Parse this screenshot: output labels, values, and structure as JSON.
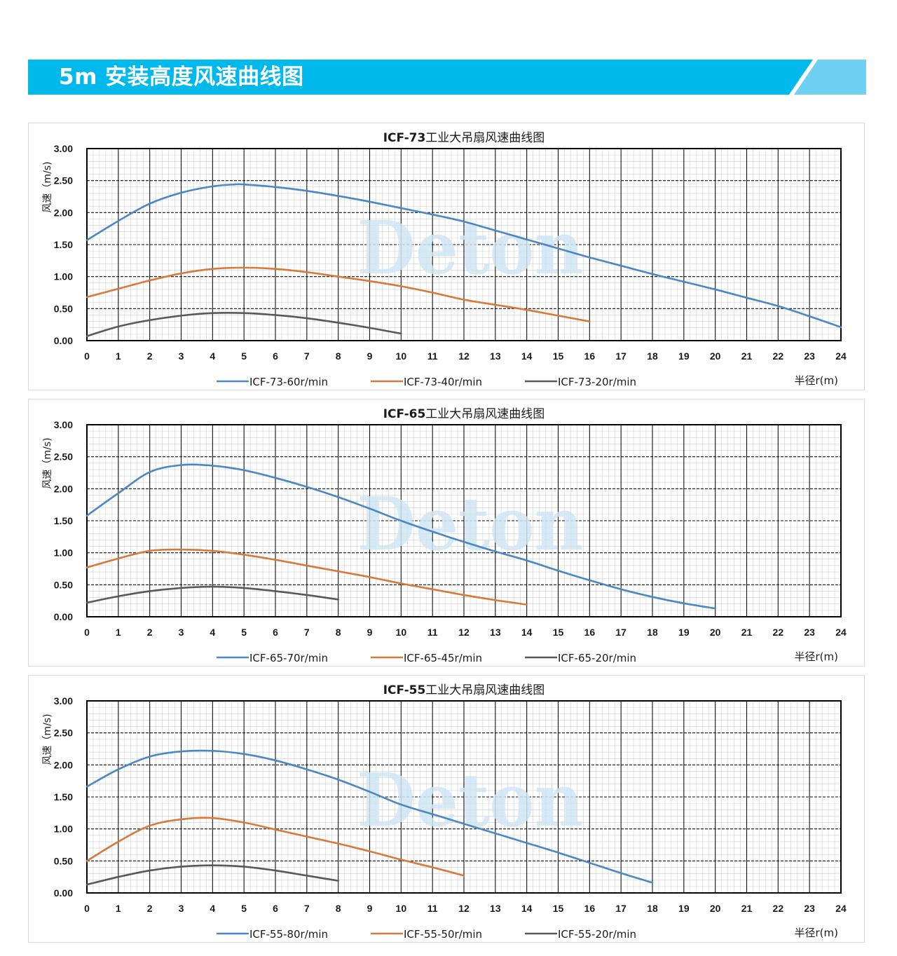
{
  "banner": {
    "title": "5m 安装高度风速曲线图",
    "color_main": "#00b9ec",
    "color_light": "#6fd0f3"
  },
  "watermark": "Deton",
  "chart_data": [
    {
      "type": "line",
      "title_model": "ICF-73",
      "title_suffix": "工业大吊扇风速曲线图",
      "ylabel": "风速（m/s)",
      "xlabel": "半径r(m)",
      "xlim": [
        0,
        24
      ],
      "ylim": [
        0,
        3
      ],
      "x_ticks": [
        0,
        1,
        2,
        3,
        4,
        5,
        6,
        7,
        8,
        9,
        10,
        11,
        12,
        13,
        14,
        15,
        16,
        17,
        18,
        19,
        20,
        21,
        22,
        23,
        24
      ],
      "y_ticks": [
        "0.00",
        "0.50",
        "1.00",
        "1.50",
        "2.00",
        "2.50",
        "3.00"
      ],
      "grid": true,
      "legend_position": "bottom",
      "series": [
        {
          "name": "ICF-73-60r/min",
          "color": "#4a87c5",
          "x": [
            0,
            1,
            2,
            3,
            4,
            4.7,
            5,
            6,
            7,
            8,
            9,
            10,
            11,
            12,
            13,
            14,
            15,
            16,
            17,
            18,
            19,
            20,
            21,
            22,
            23,
            24
          ],
          "y": [
            1.57,
            1.87,
            2.14,
            2.31,
            2.41,
            2.44,
            2.44,
            2.4,
            2.34,
            2.26,
            2.17,
            2.07,
            1.97,
            1.86,
            1.72,
            1.58,
            1.44,
            1.3,
            1.17,
            1.04,
            0.92,
            0.8,
            0.67,
            0.54,
            0.38,
            0.21
          ]
        },
        {
          "name": "ICF-73-40r/min",
          "color": "#d87939",
          "x": [
            0,
            1,
            2,
            3,
            4,
            5,
            6,
            7,
            8,
            9,
            10,
            11,
            12,
            13,
            14,
            15,
            16
          ],
          "y": [
            0.68,
            0.81,
            0.94,
            1.05,
            1.12,
            1.14,
            1.12,
            1.07,
            1.0,
            0.93,
            0.85,
            0.75,
            0.64,
            0.56,
            0.48,
            0.39,
            0.3
          ]
        },
        {
          "name": "ICF-73-20r/min",
          "color": "#595959",
          "x": [
            0,
            1,
            2,
            3,
            4,
            5,
            6,
            7,
            8,
            9,
            10
          ],
          "y": [
            0.07,
            0.22,
            0.32,
            0.39,
            0.43,
            0.43,
            0.4,
            0.35,
            0.28,
            0.2,
            0.11
          ]
        }
      ]
    },
    {
      "type": "line",
      "title_model": "ICF-65",
      "title_suffix": "工业大吊扇风速曲线图",
      "ylabel": "风速（m/s)",
      "xlabel": "半径r(m)",
      "xlim": [
        0,
        24
      ],
      "ylim": [
        0,
        3
      ],
      "x_ticks": [
        0,
        1,
        2,
        3,
        4,
        5,
        6,
        7,
        8,
        9,
        10,
        11,
        12,
        13,
        14,
        15,
        16,
        17,
        18,
        19,
        20,
        21,
        22,
        23,
        24
      ],
      "y_ticks": [
        "0.00",
        "0.50",
        "1.00",
        "1.50",
        "2.00",
        "2.50",
        "3.00"
      ],
      "grid": true,
      "legend_position": "bottom",
      "series": [
        {
          "name": "ICF-65-70r/min",
          "color": "#4a87c5",
          "x": [
            0,
            1,
            2,
            3,
            4,
            5,
            6,
            7,
            8,
            9,
            10,
            11,
            12,
            13,
            14,
            15,
            16,
            17,
            18,
            19,
            20
          ],
          "y": [
            1.58,
            1.93,
            2.26,
            2.37,
            2.36,
            2.29,
            2.17,
            2.03,
            1.87,
            1.69,
            1.5,
            1.33,
            1.17,
            1.02,
            0.88,
            0.72,
            0.57,
            0.43,
            0.31,
            0.21,
            0.13
          ]
        },
        {
          "name": "ICF-65-45r/min",
          "color": "#d87939",
          "x": [
            0,
            1,
            2,
            3,
            4,
            5,
            6,
            7,
            8,
            9,
            10,
            11,
            12,
            13,
            14
          ],
          "y": [
            0.77,
            0.91,
            1.03,
            1.05,
            1.03,
            0.97,
            0.89,
            0.8,
            0.71,
            0.62,
            0.52,
            0.43,
            0.34,
            0.26,
            0.19
          ]
        },
        {
          "name": "ICF-65-20r/min",
          "color": "#595959",
          "x": [
            0,
            1,
            2,
            3,
            4,
            5,
            6,
            7,
            8
          ],
          "y": [
            0.22,
            0.32,
            0.4,
            0.45,
            0.47,
            0.45,
            0.4,
            0.34,
            0.27
          ]
        }
      ]
    },
    {
      "type": "line",
      "title_model": "ICF-55",
      "title_suffix": "工业大吊扇风速曲线图",
      "ylabel": "风速（m/s)",
      "xlabel": "半径r(m)",
      "xlim": [
        0,
        24
      ],
      "ylim": [
        0,
        3
      ],
      "x_ticks": [
        0,
        1,
        2,
        3,
        4,
        5,
        6,
        7,
        8,
        9,
        10,
        11,
        12,
        13,
        14,
        15,
        16,
        17,
        18,
        19,
        20,
        21,
        22,
        23,
        24
      ],
      "y_ticks": [
        "0.00",
        "0.50",
        "1.00",
        "1.50",
        "2.00",
        "2.50",
        "3.00"
      ],
      "grid": true,
      "legend_position": "bottom",
      "series": [
        {
          "name": "ICF-55-80r/min",
          "color": "#4a87c5",
          "x": [
            0,
            1,
            2,
            3,
            4,
            5,
            6,
            7,
            8,
            9,
            10,
            11,
            12,
            13,
            14,
            15,
            16,
            17,
            18
          ],
          "y": [
            1.66,
            1.93,
            2.13,
            2.21,
            2.22,
            2.17,
            2.07,
            1.93,
            1.77,
            1.58,
            1.38,
            1.23,
            1.08,
            0.93,
            0.78,
            0.63,
            0.47,
            0.31,
            0.16
          ]
        },
        {
          "name": "ICF-55-50r/min",
          "color": "#d87939",
          "x": [
            0,
            1,
            2,
            3,
            4,
            5,
            6,
            7,
            8,
            9,
            10,
            11,
            12
          ],
          "y": [
            0.5,
            0.8,
            1.05,
            1.15,
            1.17,
            1.1,
            0.99,
            0.88,
            0.77,
            0.65,
            0.52,
            0.4,
            0.27
          ]
        },
        {
          "name": "ICF-55-20r/min",
          "color": "#595959",
          "x": [
            0,
            1,
            2,
            3,
            4,
            5,
            6,
            7,
            8
          ],
          "y": [
            0.13,
            0.25,
            0.35,
            0.41,
            0.43,
            0.41,
            0.35,
            0.27,
            0.19
          ]
        }
      ]
    }
  ]
}
